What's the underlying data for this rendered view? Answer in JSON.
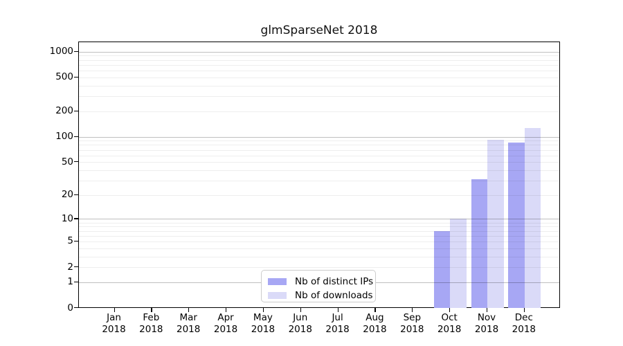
{
  "title": "glmSparseNet 2018",
  "legend": {
    "items": [
      {
        "label": "Nb of distinct IPs",
        "color": "#a7a7f4"
      },
      {
        "label": "Nb of downloads",
        "color": "#dadaf8"
      }
    ]
  },
  "chart_data": {
    "type": "bar",
    "title": "glmSparseNet 2018",
    "categories": [
      "Jan 2018",
      "Feb 2018",
      "Mar 2018",
      "Apr 2018",
      "May 2018",
      "Jun 2018",
      "Jul 2018",
      "Aug 2018",
      "Sep 2018",
      "Oct 2018",
      "Nov 2018",
      "Dec 2018"
    ],
    "series": [
      {
        "name": "Nb of distinct IPs",
        "color": "#a7a7f4",
        "values": [
          0,
          0,
          0,
          0,
          0,
          0,
          0,
          0,
          0,
          7,
          31,
          86
        ]
      },
      {
        "name": "Nb of downloads",
        "color": "#dadaf8",
        "values": [
          0,
          0,
          0,
          0,
          0,
          0,
          0,
          0,
          0,
          10,
          92,
          127
        ]
      }
    ],
    "xlabel": "",
    "ylabel": "",
    "yscale": "log1p",
    "yticks": [
      0,
      1,
      2,
      5,
      10,
      20,
      50,
      100,
      200,
      500,
      1000
    ],
    "ylim": [
      0,
      1300
    ],
    "grid": "horizontal major (1,10,100,1000) + minor (2-9 per decade), drawn over bars",
    "legend_position": "inside bottom-center"
  }
}
